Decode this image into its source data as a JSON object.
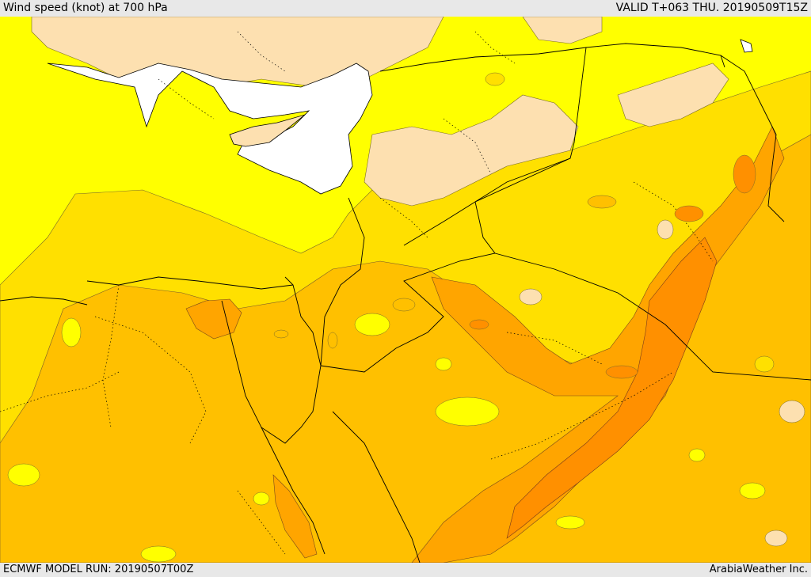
{
  "header": {
    "title": "Wind speed (knot) at 700 hPa",
    "valid_time": "VALID T+063 THU. 20190509T15Z"
  },
  "footer": {
    "model_run": "ECMWF MODEL RUN: 20190507T00Z",
    "credit": "ArabiaWeather Inc."
  },
  "colors": {
    "sea": "#ffffff",
    "wind_light": "#fde0b0",
    "wind_low": "#ffff00",
    "wind_moderate": "#ffe000",
    "wind_fresh": "#ffc000",
    "wind_strong": "#ffa500",
    "wind_very_strong": "#ff9000",
    "borders": "#000000"
  }
}
